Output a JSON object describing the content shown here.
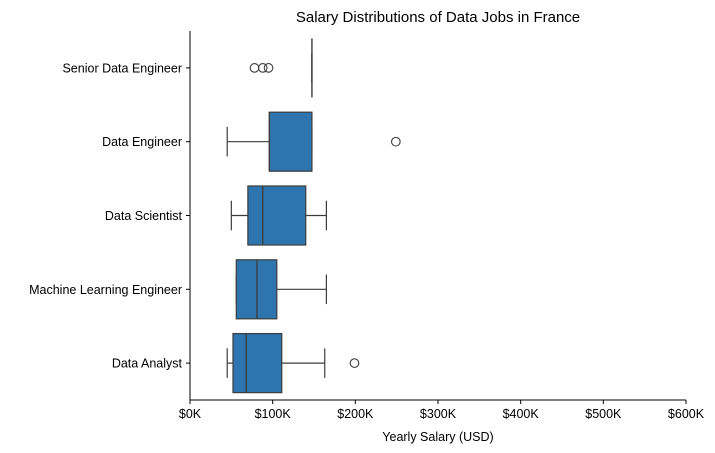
{
  "chart_data": {
    "type": "box",
    "orientation": "horizontal",
    "title": "Salary Distributions of Data Jobs in France",
    "xlabel": "Yearly Salary (USD)",
    "ylabel": "",
    "xlim": [
      0,
      600000
    ],
    "xticks": [
      0,
      100000,
      200000,
      300000,
      400000,
      500000,
      600000
    ],
    "xtick_labels": [
      "$0K",
      "$100K",
      "$200K",
      "$300K",
      "$400K",
      "$500K",
      "$600K"
    ],
    "grid": false,
    "colors": {
      "box_fill": "#2e75b0",
      "line": "#3d3d3d"
    },
    "categories": [
      "Senior Data Engineer",
      "Data Engineer",
      "Data Scientist",
      "Machine Learning Engineer",
      "Data Analyst"
    ],
    "boxes": [
      {
        "category": "Senior Data Engineer",
        "whisker_low": 147500,
        "q1": 147500,
        "median": 147500,
        "q3": 147500,
        "whisker_high": 147500,
        "outliers": [
          78000,
          88000,
          95000
        ]
      },
      {
        "category": "Data Engineer",
        "whisker_low": 45000,
        "q1": 96000,
        "median": 96000,
        "q3": 147500,
        "whisker_high": 147500,
        "outliers": [
          249000
        ]
      },
      {
        "category": "Data Scientist",
        "whisker_low": 50000,
        "q1": 70000,
        "median": 88000,
        "q3": 140000,
        "whisker_high": 165000,
        "outliers": []
      },
      {
        "category": "Machine Learning Engineer",
        "whisker_low": 56000,
        "q1": 56000,
        "median": 81000,
        "q3": 105000,
        "whisker_high": 165000,
        "outliers": []
      },
      {
        "category": "Data Analyst",
        "whisker_low": 45000,
        "q1": 52000,
        "median": 68000,
        "q3": 111000,
        "whisker_high": 163000,
        "outliers": [
          199000
        ]
      }
    ]
  }
}
